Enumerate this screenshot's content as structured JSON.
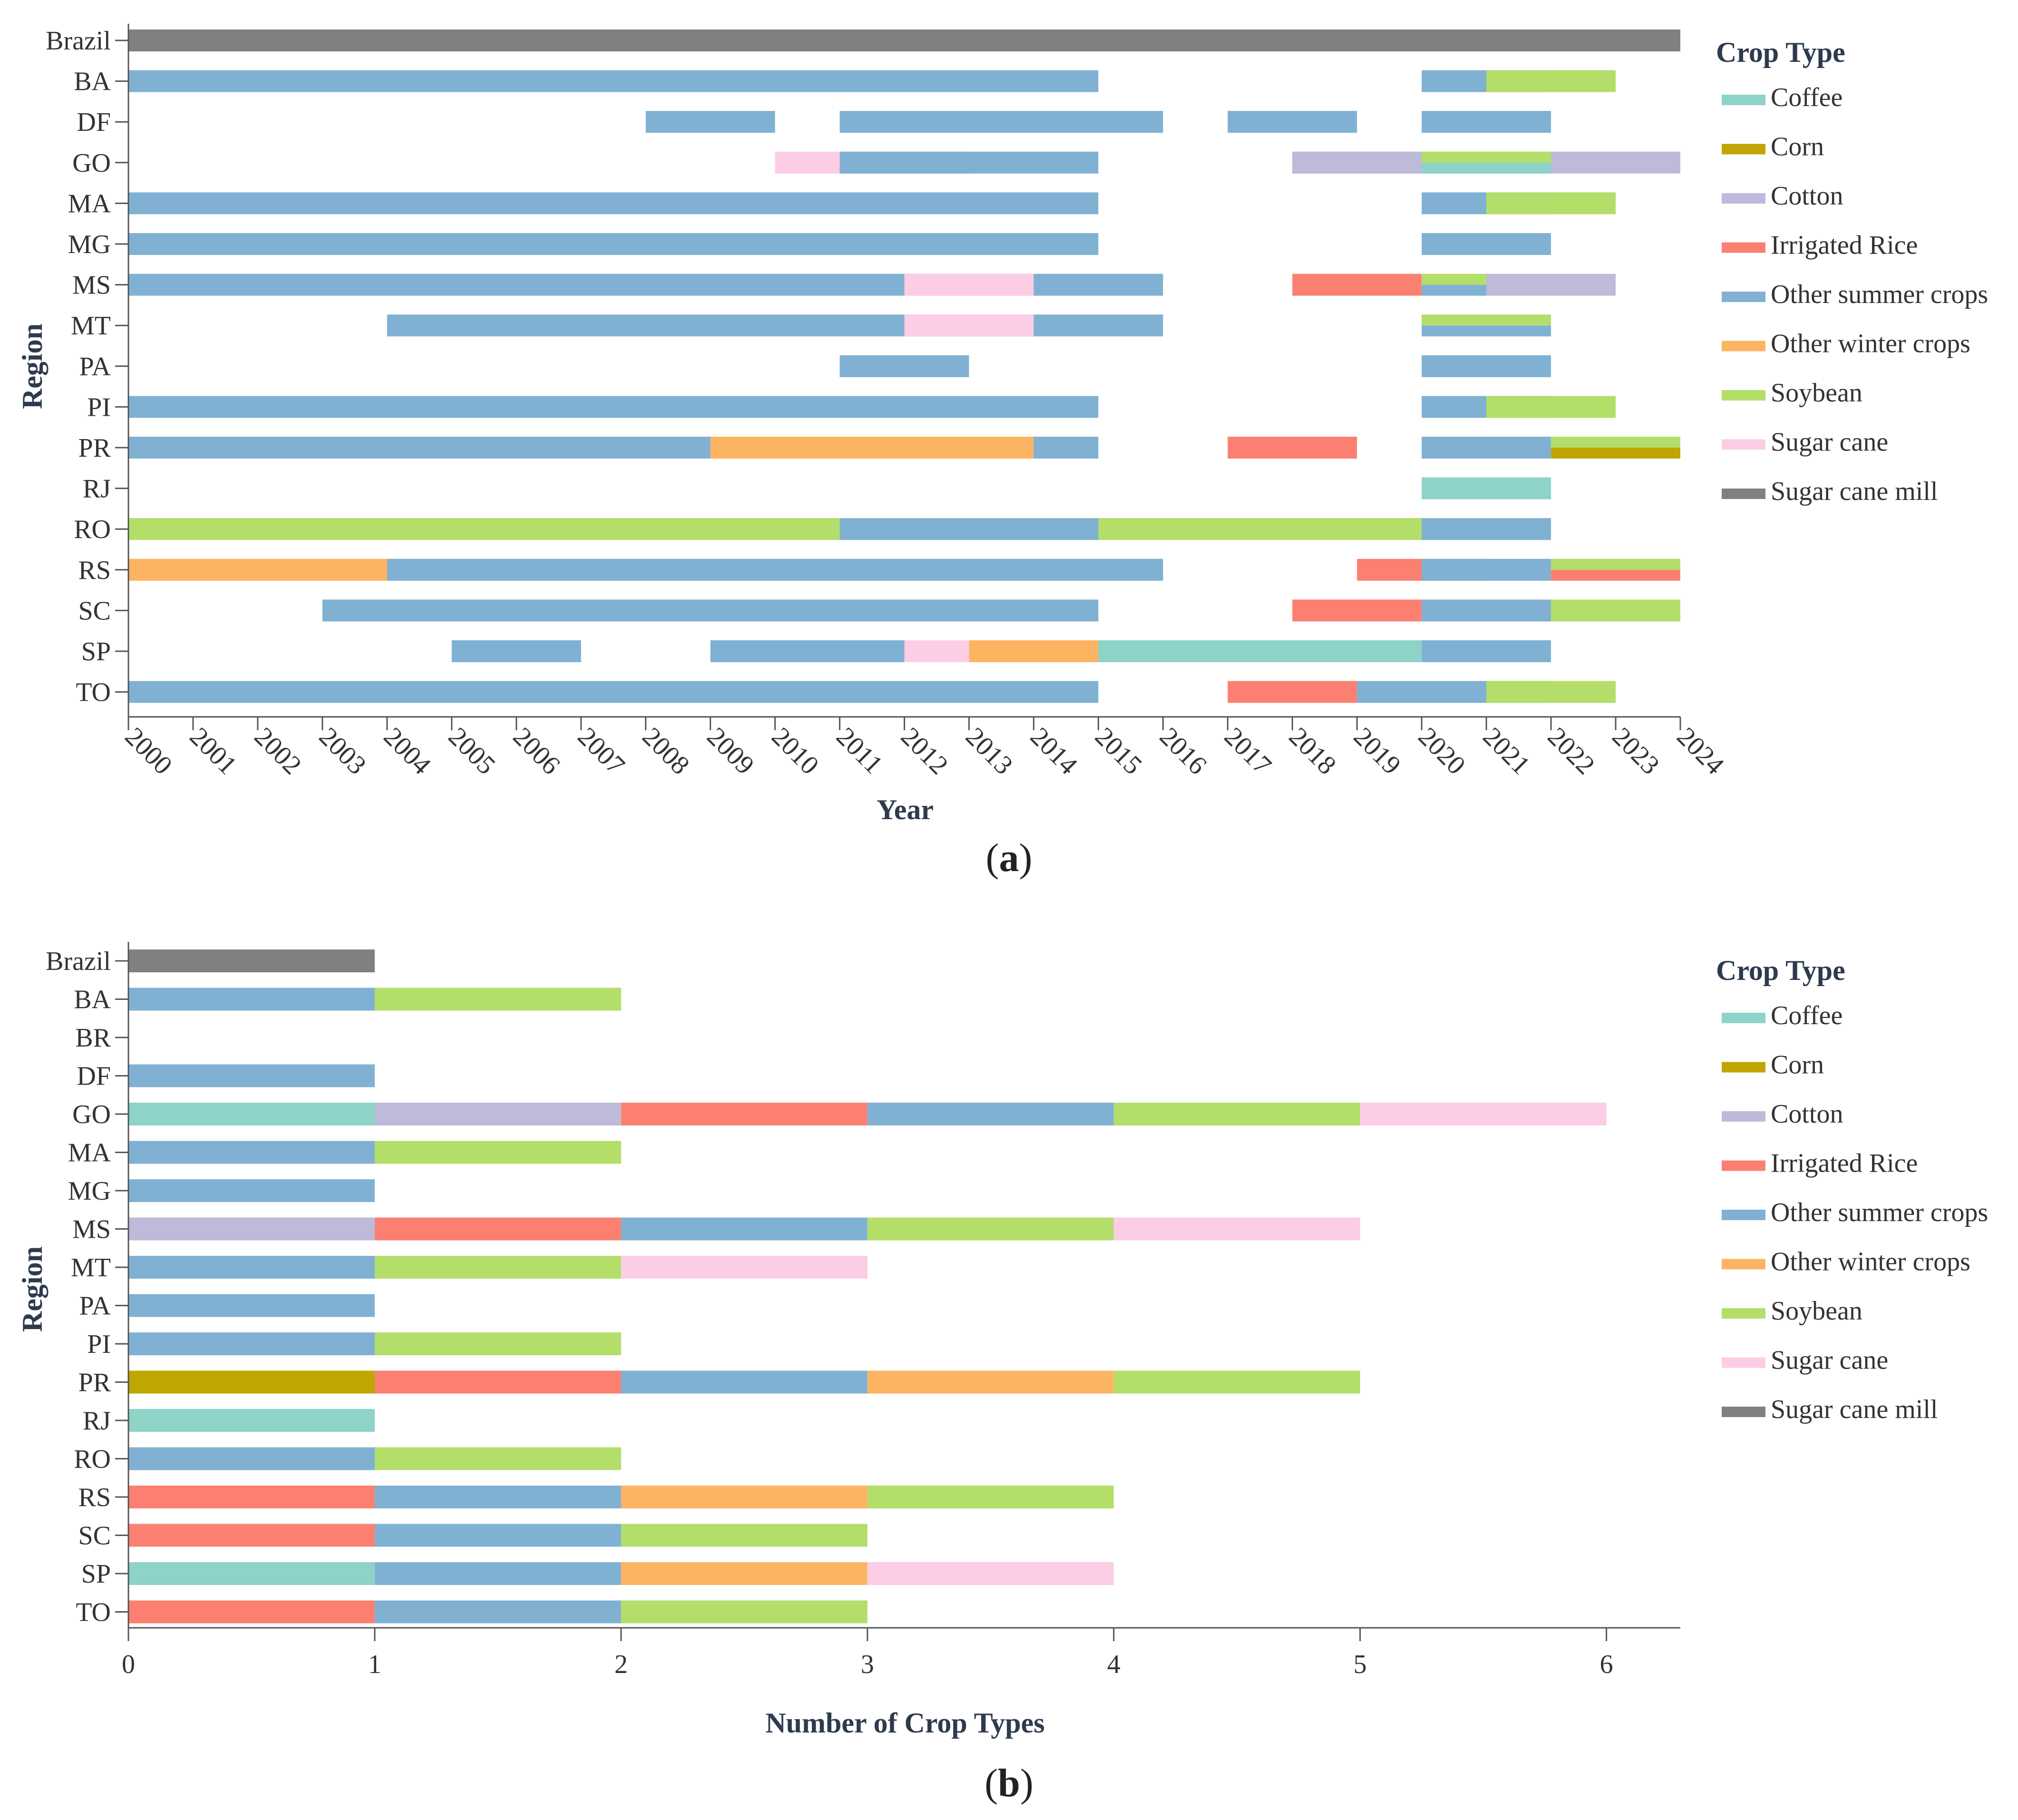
{
  "colors": {
    "Coffee": "#8dd3c7",
    "Corn": "#bfa600",
    "Cotton": "#bebada",
    "Irrigated Rice": "#fb8072",
    "Other summer crops": "#80b1d3",
    "Other winter crops": "#fdb462",
    "Soybean": "#b3de69",
    "Sugar cane": "#fccde5",
    "Sugar cane mill": "#808080"
  },
  "chart_data": [
    {
      "panel": "a",
      "type": "timeline",
      "xlabel": "Year",
      "ylabel": "Region",
      "xlim": [
        2000,
        2024
      ],
      "xticks": [
        "2000",
        "2001",
        "2002",
        "2003",
        "2004",
        "2005",
        "2006",
        "2007",
        "2008",
        "2009",
        "2010",
        "2011",
        "2012",
        "2013",
        "2014",
        "2015",
        "2016",
        "2017",
        "2018",
        "2019",
        "2020",
        "2021",
        "2022",
        "2023",
        "2024"
      ],
      "legend_title": "Crop Type",
      "legend": [
        "Coffee",
        "Corn",
        "Cotton",
        "Irrigated Rice",
        "Other summer crops",
        "Other winter crops",
        "Soybean",
        "Sugar cane",
        "Sugar cane mill"
      ],
      "legend_position": "right",
      "rows": [
        {
          "region": "Brazil",
          "segments": [
            {
              "crop": "Sugar cane mill",
              "start": 2000,
              "end": 2024
            }
          ]
        },
        {
          "region": "BA",
          "segments": [
            {
              "crop": "Other summer crops",
              "start": 2000,
              "end": 2015
            },
            {
              "crop": "Other summer crops",
              "start": 2020,
              "end": 2022
            },
            {
              "crop": "Soybean",
              "start": 2021,
              "end": 2023
            }
          ]
        },
        {
          "region": "DF",
          "segments": [
            {
              "crop": "Other summer crops",
              "start": 2008,
              "end": 2010
            },
            {
              "crop": "Other summer crops",
              "start": 2011,
              "end": 2016
            },
            {
              "crop": "Other summer crops",
              "start": 2017,
              "end": 2019
            },
            {
              "crop": "Other summer crops",
              "start": 2020,
              "end": 2022
            }
          ]
        },
        {
          "region": "GO",
          "segments": [
            {
              "crop": "Sugar cane",
              "start": 2010,
              "end": 2013
            },
            {
              "crop": "Other summer crops",
              "start": 2011,
              "end": 2015
            },
            {
              "crop": "Irrigated Rice",
              "start": 2018,
              "end": 2020
            },
            {
              "crop": "Cotton",
              "start": 2018,
              "end": 2024
            },
            {
              "crop": "Soybean",
              "start": 2020,
              "end": 2022
            },
            {
              "crop": "Coffee",
              "start": 2020,
              "end": 2022
            }
          ]
        },
        {
          "region": "MA",
          "segments": [
            {
              "crop": "Other summer crops",
              "start": 2000,
              "end": 2015
            },
            {
              "crop": "Other summer crops",
              "start": 2020,
              "end": 2022
            },
            {
              "crop": "Soybean",
              "start": 2021,
              "end": 2023
            }
          ]
        },
        {
          "region": "MG",
          "segments": [
            {
              "crop": "Other summer crops",
              "start": 2000,
              "end": 2015
            },
            {
              "crop": "Other summer crops",
              "start": 2020,
              "end": 2022
            }
          ]
        },
        {
          "region": "MS",
          "segments": [
            {
              "crop": "Other summer crops",
              "start": 2000,
              "end": 2016
            },
            {
              "crop": "Sugar cane",
              "start": 2012,
              "end": 2014
            },
            {
              "crop": "Irrigated Rice",
              "start": 2018,
              "end": 2020
            },
            {
              "crop": "Soybean",
              "start": 2020,
              "end": 2022
            },
            {
              "crop": "Other summer crops",
              "start": 2020,
              "end": 2022
            },
            {
              "crop": "Cotton",
              "start": 2021,
              "end": 2023
            }
          ]
        },
        {
          "region": "MT",
          "segments": [
            {
              "crop": "Other summer crops",
              "start": 2004,
              "end": 2016
            },
            {
              "crop": "Sugar cane",
              "start": 2012,
              "end": 2014
            },
            {
              "crop": "Soybean",
              "start": 2020,
              "end": 2022
            },
            {
              "crop": "Other summer crops",
              "start": 2020,
              "end": 2022
            }
          ]
        },
        {
          "region": "PA",
          "segments": [
            {
              "crop": "Other summer crops",
              "start": 2011,
              "end": 2013
            },
            {
              "crop": "Other summer crops",
              "start": 2020,
              "end": 2022
            }
          ]
        },
        {
          "region": "PI",
          "segments": [
            {
              "crop": "Other summer crops",
              "start": 2000,
              "end": 2015
            },
            {
              "crop": "Other summer crops",
              "start": 2020,
              "end": 2022
            },
            {
              "crop": "Soybean",
              "start": 2021,
              "end": 2023
            }
          ]
        },
        {
          "region": "PR",
          "segments": [
            {
              "crop": "Other summer crops",
              "start": 2000,
              "end": 2015
            },
            {
              "crop": "Other winter crops",
              "start": 2009,
              "end": 2014
            },
            {
              "crop": "Irrigated Rice",
              "start": 2017,
              "end": 2019
            },
            {
              "crop": "Other summer crops",
              "start": 2020,
              "end": 2022
            },
            {
              "crop": "Soybean",
              "start": 2022,
              "end": 2024
            },
            {
              "crop": "Corn",
              "start": 2022,
              "end": 2024
            }
          ]
        },
        {
          "region": "RJ",
          "segments": [
            {
              "crop": "Coffee",
              "start": 2020,
              "end": 2022
            }
          ]
        },
        {
          "region": "RO",
          "segments": [
            {
              "crop": "Soybean",
              "start": 2000,
              "end": 2022
            },
            {
              "crop": "Other summer crops",
              "start": 2011,
              "end": 2015
            },
            {
              "crop": "Other summer crops",
              "start": 2020,
              "end": 2022
            }
          ]
        },
        {
          "region": "RS",
          "segments": [
            {
              "crop": "Other winter crops",
              "start": 2000,
              "end": 2016
            },
            {
              "crop": "Other summer crops",
              "start": 2004,
              "end": 2016
            },
            {
              "crop": "Irrigated Rice",
              "start": 2019,
              "end": 2021
            },
            {
              "crop": "Other summer crops",
              "start": 2020,
              "end": 2022
            },
            {
              "crop": "Soybean",
              "start": 2022,
              "end": 2024
            },
            {
              "crop": "Irrigated Rice",
              "start": 2022,
              "end": 2024
            }
          ]
        },
        {
          "region": "SC",
          "segments": [
            {
              "crop": "Other summer crops",
              "start": 2003,
              "end": 2015
            },
            {
              "crop": "Irrigated Rice",
              "start": 2018,
              "end": 2020
            },
            {
              "crop": "Other summer crops",
              "start": 2020,
              "end": 2022
            },
            {
              "crop": "Soybean",
              "start": 2022,
              "end": 2024
            }
          ]
        },
        {
          "region": "SP",
          "segments": [
            {
              "crop": "Other summer crops",
              "start": 2005,
              "end": 2007
            },
            {
              "crop": "Other summer crops",
              "start": 2009,
              "end": 2016
            },
            {
              "crop": "Sugar cane",
              "start": 2012,
              "end": 2014
            },
            {
              "crop": "Other winter crops",
              "start": 2013,
              "end": 2015
            },
            {
              "crop": "Coffee",
              "start": 2015,
              "end": 2020
            },
            {
              "crop": "Other summer crops",
              "start": 2020,
              "end": 2022
            }
          ]
        },
        {
          "region": "TO",
          "segments": [
            {
              "crop": "Other summer crops",
              "start": 2000,
              "end": 2015
            },
            {
              "crop": "Irrigated Rice",
              "start": 2017,
              "end": 2019
            },
            {
              "crop": "Other summer crops",
              "start": 2019,
              "end": 2022
            },
            {
              "crop": "Soybean",
              "start": 2021,
              "end": 2023
            }
          ]
        }
      ]
    },
    {
      "panel": "b",
      "type": "bar",
      "orientation": "horizontal",
      "stacked": true,
      "xlabel": "Number of Crop Types",
      "ylabel": "Region",
      "xlim": [
        0,
        6.3
      ],
      "xticks": [
        "0",
        "1",
        "2",
        "3",
        "4",
        "5",
        "6"
      ],
      "legend_title": "Crop Type",
      "legend": [
        "Coffee",
        "Corn",
        "Cotton",
        "Irrigated Rice",
        "Other summer crops",
        "Other winter crops",
        "Soybean",
        "Sugar cane",
        "Sugar cane mill"
      ],
      "legend_position": "right",
      "rows": [
        {
          "region": "Brazil",
          "crops": [
            "Sugar cane mill"
          ]
        },
        {
          "region": "BA",
          "crops": [
            "Other summer crops",
            "Soybean"
          ]
        },
        {
          "region": "BR",
          "crops": []
        },
        {
          "region": "DF",
          "crops": [
            "Other summer crops"
          ]
        },
        {
          "region": "GO",
          "crops": [
            "Coffee",
            "Cotton",
            "Irrigated Rice",
            "Other summer crops",
            "Soybean",
            "Sugar cane"
          ]
        },
        {
          "region": "MA",
          "crops": [
            "Other summer crops",
            "Soybean"
          ]
        },
        {
          "region": "MG",
          "crops": [
            "Other summer crops"
          ]
        },
        {
          "region": "MS",
          "crops": [
            "Cotton",
            "Irrigated Rice",
            "Other summer crops",
            "Soybean",
            "Sugar cane"
          ]
        },
        {
          "region": "MT",
          "crops": [
            "Other summer crops",
            "Soybean",
            "Sugar cane"
          ]
        },
        {
          "region": "PA",
          "crops": [
            "Other summer crops"
          ]
        },
        {
          "region": "PI",
          "crops": [
            "Other summer crops",
            "Soybean"
          ]
        },
        {
          "region": "PR",
          "crops": [
            "Corn",
            "Irrigated Rice",
            "Other summer crops",
            "Other winter crops",
            "Soybean"
          ]
        },
        {
          "region": "RJ",
          "crops": [
            "Coffee"
          ]
        },
        {
          "region": "RO",
          "crops": [
            "Other summer crops",
            "Soybean"
          ]
        },
        {
          "region": "RS",
          "crops": [
            "Irrigated Rice",
            "Other summer crops",
            "Other winter crops",
            "Soybean"
          ]
        },
        {
          "region": "SC",
          "crops": [
            "Irrigated Rice",
            "Other summer crops",
            "Soybean"
          ]
        },
        {
          "region": "SP",
          "crops": [
            "Coffee",
            "Other summer crops",
            "Other winter crops",
            "Sugar cane"
          ]
        },
        {
          "region": "TO",
          "crops": [
            "Irrigated Rice",
            "Other summer crops",
            "Soybean"
          ]
        }
      ]
    }
  ],
  "panel_labels": {
    "a": "a",
    "b": "b"
  }
}
